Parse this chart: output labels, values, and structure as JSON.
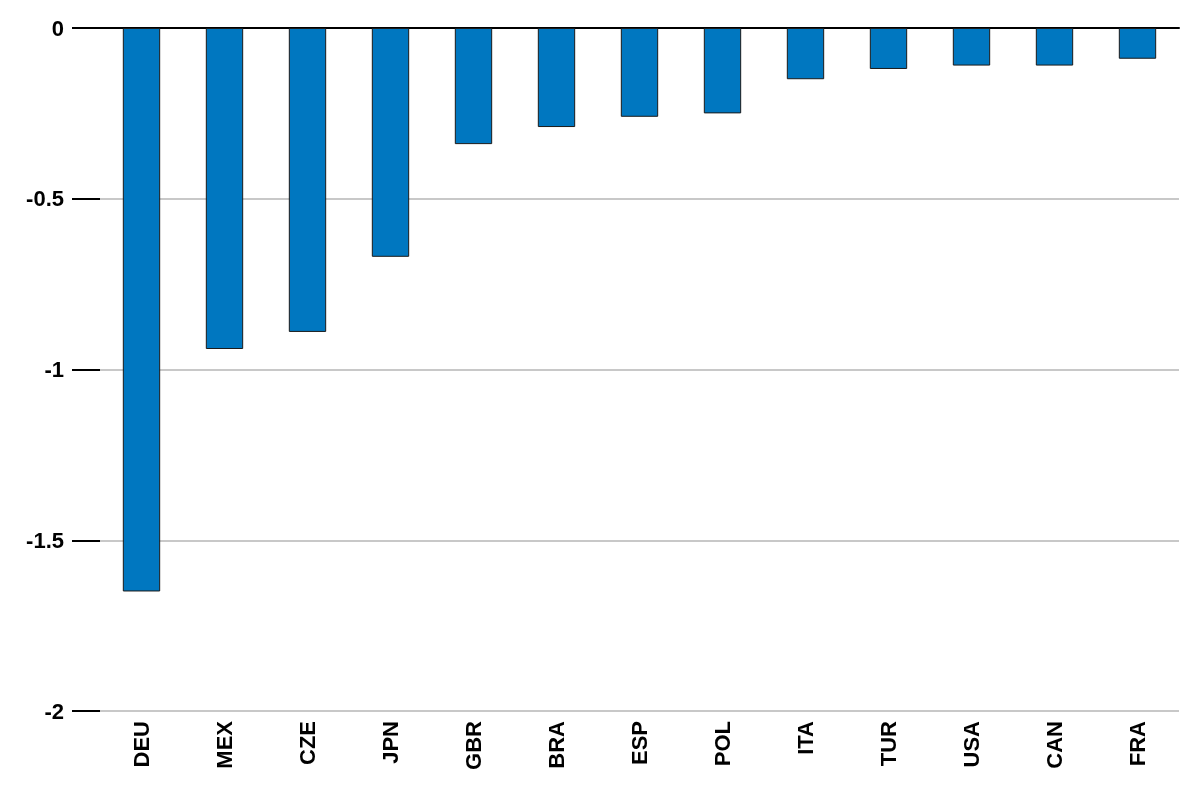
{
  "chart_data": {
    "type": "bar",
    "categories": [
      "DEU",
      "MEX",
      "CZE",
      "JPN",
      "GBR",
      "BRA",
      "ESP",
      "POL",
      "ITA",
      "TUR",
      "USA",
      "CAN",
      "FRA"
    ],
    "values": [
      -1.65,
      -0.94,
      -0.89,
      -0.67,
      -0.34,
      -0.29,
      -0.26,
      -0.25,
      -0.15,
      -0.12,
      -0.11,
      -0.11,
      -0.09
    ],
    "color": "#0077c0",
    "ylim": [
      -2,
      0
    ],
    "yticks": [
      -2,
      -1.5,
      -1,
      -0.5,
      0
    ],
    "grid": "y"
  }
}
